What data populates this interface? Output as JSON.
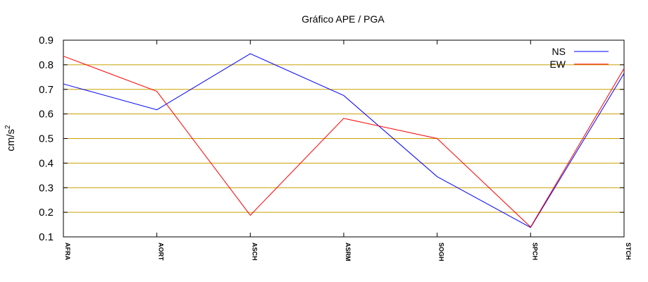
{
  "chart_data": {
    "type": "line",
    "title": "Gráfico  APE / PGA",
    "xlabel": "",
    "ylabel": "cm/s",
    "ylabel_superscript": "2",
    "ylim": [
      0.1,
      0.9
    ],
    "yticks": [
      "0.1",
      "0.2",
      "0.3",
      "0.4",
      "0.5",
      "0.6",
      "0.7",
      "0.8",
      "0.9"
    ],
    "categories": [
      "AFRA",
      "AORT",
      "ASCH",
      "ASRM",
      "SOGH",
      "SPCH",
      "STCH"
    ],
    "grid": true,
    "grid_color": "#c8a000",
    "legend_position": "top-right",
    "series": [
      {
        "name": "NS",
        "color": "#0000ff",
        "values": [
          0.722,
          0.617,
          0.845,
          0.675,
          0.345,
          0.138,
          0.765
        ]
      },
      {
        "name": "EW",
        "color": "#ff0000",
        "values": [
          0.835,
          0.692,
          0.188,
          0.582,
          0.5,
          0.14,
          0.785
        ]
      }
    ]
  }
}
